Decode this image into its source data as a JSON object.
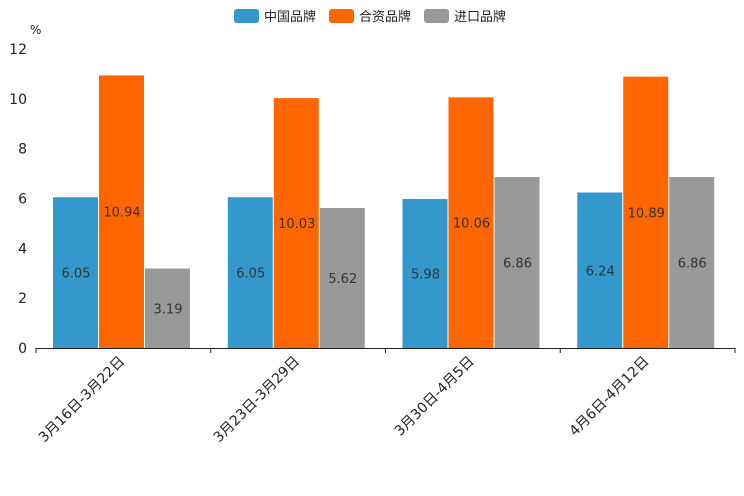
{
  "chart_data": {
    "type": "bar",
    "title": "",
    "unit_label": "%",
    "xlabel": "",
    "ylabel": "",
    "ylim": [
      0,
      12
    ],
    "yticks": [
      0,
      2,
      4,
      6,
      8,
      10,
      12
    ],
    "categories": [
      "3月16日-3月22日",
      "3月23日-3月29日",
      "3月30日-4月5日",
      "4月6日-4月12日"
    ],
    "series": [
      {
        "name": "中国品牌",
        "color": "#3399cc",
        "values": [
          6.05,
          6.05,
          5.98,
          6.24
        ]
      },
      {
        "name": "合资品牌",
        "color": "#ff6600",
        "values": [
          10.94,
          10.03,
          10.06,
          10.89
        ]
      },
      {
        "name": "进口品牌",
        "color": "#999999",
        "values": [
          3.19,
          5.62,
          6.86,
          6.86
        ]
      }
    ],
    "legend_position": "top-center",
    "grid": false
  }
}
